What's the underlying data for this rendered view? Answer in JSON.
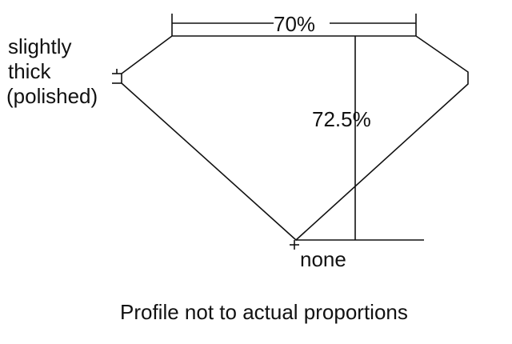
{
  "labels": {
    "table": "70%",
    "depth": "72.5%",
    "girdle": [
      "slightly",
      "thick",
      "(polished)"
    ],
    "culet": "none",
    "caption": "Profile not to actual proportions"
  },
  "colors": {
    "line": "#111111",
    "background": "#ffffff"
  }
}
